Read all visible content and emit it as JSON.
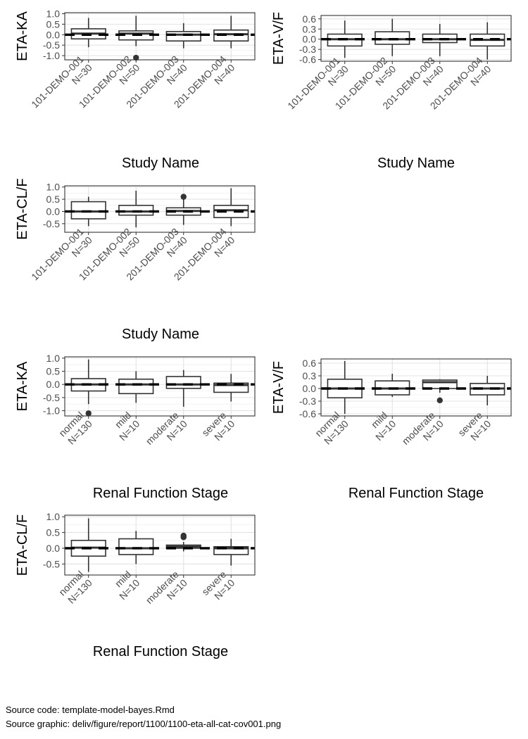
{
  "chart_data": [
    {
      "type": "boxplot",
      "ylabel": "ETA-KA",
      "xlabel": "Study Name",
      "categories": [
        "101-DEMO-001\nN=30",
        "101-DEMO-002\nN=50",
        "201-DEMO-003\nN=40",
        "201-DEMO-004\nN=40"
      ],
      "ylim": [
        -1.2,
        1.05
      ],
      "yticks": [
        1.0,
        0.5,
        0.0,
        -0.5,
        -1.0
      ],
      "ytick_labels": [
        "1.0",
        "0.5",
        "0.0",
        "-0.5",
        "-1.0"
      ],
      "boxes": [
        {
          "min": -0.6,
          "q1": -0.2,
          "median": 0.05,
          "q3": 0.28,
          "max": 0.8,
          "outliers": []
        },
        {
          "min": -0.55,
          "q1": -0.25,
          "median": 0.05,
          "q3": 0.18,
          "max": 0.9,
          "outliers": [
            -1.1
          ]
        },
        {
          "min": -0.65,
          "q1": -0.3,
          "median": 0.0,
          "q3": 0.15,
          "max": 0.55,
          "outliers": []
        },
        {
          "min": -0.65,
          "q1": -0.3,
          "median": 0.02,
          "q3": 0.22,
          "max": 0.9,
          "outliers": []
        }
      ],
      "reference_line": 0,
      "grid": true
    },
    {
      "type": "boxplot",
      "ylabel": "ETA-V/F",
      "xlabel": "Study Name",
      "categories": [
        "101-DEMO-001\nN=30",
        "101-DEMO-002\nN=50",
        "201-DEMO-003\nN=40",
        "201-DEMO-004\nN=40"
      ],
      "ylim": [
        -0.65,
        0.7
      ],
      "yticks": [
        0.6,
        0.3,
        0.0,
        -0.3,
        -0.6
      ],
      "ytick_labels": [
        "0.6",
        "0.3",
        "0.0",
        "-0.3",
        "-0.6"
      ],
      "boxes": [
        {
          "min": -0.55,
          "q1": -0.2,
          "median": 0.0,
          "q3": 0.15,
          "max": 0.55,
          "outliers": []
        },
        {
          "min": -0.5,
          "q1": -0.15,
          "median": 0.0,
          "q3": 0.22,
          "max": 0.6,
          "outliers": []
        },
        {
          "min": -0.5,
          "q1": -0.1,
          "median": 0.0,
          "q3": 0.15,
          "max": 0.45,
          "outliers": []
        },
        {
          "min": -0.6,
          "q1": -0.2,
          "median": -0.02,
          "q3": 0.15,
          "max": 0.5,
          "outliers": []
        }
      ],
      "reference_line": 0,
      "grid": true
    },
    {
      "type": "boxplot",
      "ylabel": "ETA-CL/F",
      "xlabel": "Study Name",
      "categories": [
        "101-DEMO-001\nN=30",
        "101-DEMO-002\nN=50",
        "201-DEMO-003\nN=40",
        "201-DEMO-004\nN=40"
      ],
      "ylim": [
        -0.85,
        1.05
      ],
      "yticks": [
        1.0,
        0.5,
        0.0,
        -0.5
      ],
      "ytick_labels": [
        "1.0",
        "0.5",
        "0.0",
        "-0.5"
      ],
      "boxes": [
        {
          "min": -0.6,
          "q1": -0.3,
          "median": 0.0,
          "q3": 0.4,
          "max": 0.6,
          "outliers": []
        },
        {
          "min": -0.65,
          "q1": -0.15,
          "median": 0.0,
          "q3": 0.25,
          "max": 0.85,
          "outliers": []
        },
        {
          "min": -0.55,
          "q1": -0.15,
          "median": 0.02,
          "q3": 0.15,
          "max": 0.55,
          "outliers": [
            0.6
          ]
        },
        {
          "min": -0.6,
          "q1": -0.25,
          "median": 0.05,
          "q3": 0.25,
          "max": 0.95,
          "outliers": []
        }
      ],
      "reference_line": 0,
      "grid": true
    },
    {
      "type": "boxplot",
      "ylabel": "ETA-KA",
      "xlabel": "Renal Function Stage",
      "categories": [
        "normal\nN=130",
        "mild\nN=10",
        "moderate\nN=10",
        "severe\nN=10"
      ],
      "ylim": [
        -1.2,
        1.05
      ],
      "yticks": [
        1.0,
        0.5,
        0.0,
        -0.5,
        -1.0
      ],
      "ytick_labels": [
        "1.0",
        "0.5",
        "0.0",
        "-0.5",
        "-1.0"
      ],
      "boxes": [
        {
          "min": -0.75,
          "q1": -0.25,
          "median": 0.0,
          "q3": 0.22,
          "max": 0.95,
          "outliers": [
            -1.1
          ]
        },
        {
          "min": -0.7,
          "q1": -0.35,
          "median": 0.0,
          "q3": 0.2,
          "max": 0.5,
          "outliers": []
        },
        {
          "min": -0.85,
          "q1": -0.15,
          "median": 0.0,
          "q3": 0.3,
          "max": 0.55,
          "outliers": []
        },
        {
          "min": -0.65,
          "q1": -0.3,
          "median": -0.02,
          "q3": 0.05,
          "max": 0.4,
          "outliers": []
        }
      ],
      "reference_line": 0,
      "grid": true
    },
    {
      "type": "boxplot",
      "ylabel": "ETA-V/F",
      "xlabel": "Renal Function Stage",
      "categories": [
        "normal\nN=130",
        "mild\nN=10",
        "moderate\nN=10",
        "severe\nN=10"
      ],
      "ylim": [
        -0.65,
        0.7
      ],
      "yticks": [
        0.6,
        0.3,
        0.0,
        -0.3,
        -0.6
      ],
      "ytick_labels": [
        "0.6",
        "0.3",
        "0.0",
        "-0.3",
        "-0.6"
      ],
      "boxes": [
        {
          "min": -0.6,
          "q1": -0.22,
          "median": 0.0,
          "q3": 0.22,
          "max": 0.65,
          "outliers": []
        },
        {
          "min": -0.2,
          "q1": -0.15,
          "median": 0.0,
          "q3": 0.18,
          "max": 0.35,
          "outliers": []
        },
        {
          "min": -0.1,
          "q1": 0.0,
          "median": 0.15,
          "q3": 0.2,
          "max": 0.22,
          "outliers": [
            -0.28
          ]
        },
        {
          "min": -0.4,
          "q1": -0.15,
          "median": 0.0,
          "q3": 0.12,
          "max": 0.3,
          "outliers": []
        }
      ],
      "reference_line": 0,
      "grid": true
    },
    {
      "type": "boxplot",
      "ylabel": "ETA-CL/F",
      "xlabel": "Renal Function Stage",
      "categories": [
        "normal\nN=130",
        "mild\nN=10",
        "moderate\nN=10",
        "severe\nN=10"
      ],
      "ylim": [
        -0.85,
        1.05
      ],
      "yticks": [
        1.0,
        0.5,
        0.0,
        -0.5
      ],
      "ytick_labels": [
        "1.0",
        "0.5",
        "0.0",
        "-0.5"
      ],
      "boxes": [
        {
          "min": -0.75,
          "q1": -0.25,
          "median": 0.02,
          "q3": 0.25,
          "max": 0.95,
          "outliers": []
        },
        {
          "min": -0.5,
          "q1": -0.2,
          "median": 0.0,
          "q3": 0.3,
          "max": 0.55,
          "outliers": []
        },
        {
          "min": -0.1,
          "q1": 0.0,
          "median": 0.05,
          "q3": 0.1,
          "max": 0.2,
          "outliers": [
            0.35,
            0.4
          ]
        },
        {
          "min": -0.55,
          "q1": -0.2,
          "median": 0.0,
          "q3": 0.05,
          "max": 0.3,
          "outliers": []
        }
      ],
      "reference_line": 0,
      "grid": true
    }
  ],
  "footer": {
    "source_code": "Source code: template-model-bayes.Rmd",
    "source_graphic": "Source graphic: deliv/figure/report/1100/1100-eta-all-cat-cov001.png"
  }
}
